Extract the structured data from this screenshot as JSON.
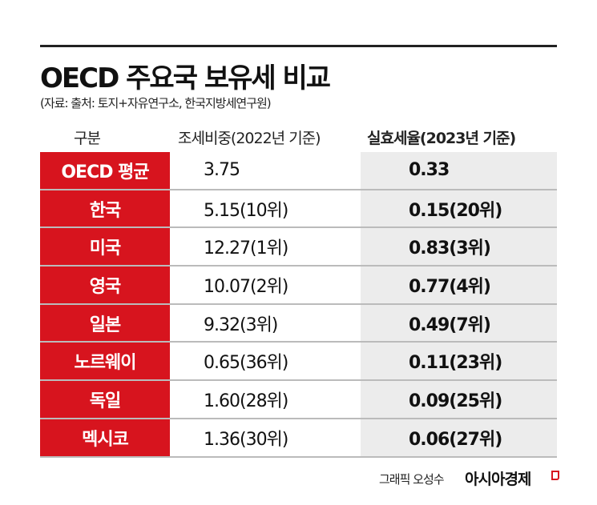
{
  "title": "OECD 주요국 보유세 비교",
  "source": "(자료: 출처: 토지+자유연구소, 한국지방세연구원)",
  "headers": {
    "category": "구분",
    "col1": "조세비중(2022년 기준)",
    "col2": "실효세율(2023년 기준)"
  },
  "rows": [
    {
      "country": "OECD 평균",
      "tax_share": "3.75",
      "effective_rate": "0.33"
    },
    {
      "country": "한국",
      "tax_share": "5.15(10위)",
      "effective_rate": "0.15(20위)"
    },
    {
      "country": "미국",
      "tax_share": "12.27(1위)",
      "effective_rate": "0.83(3위)"
    },
    {
      "country": "영국",
      "tax_share": "10.07(2위)",
      "effective_rate": "0.77(4위)"
    },
    {
      "country": "일본",
      "tax_share": "9.32(3위)",
      "effective_rate": "0.49(7위)"
    },
    {
      "country": "노르웨이",
      "tax_share": "0.65(36위)",
      "effective_rate": "0.11(23위)"
    },
    {
      "country": "독일",
      "tax_share": "1.60(28위)",
      "effective_rate": "0.09(25위)"
    },
    {
      "country": "멕시코",
      "tax_share": "1.36(30위)",
      "effective_rate": "0.06(27위)"
    }
  ],
  "credit": "그래픽 오성수",
  "brand": "아시아경제",
  "colors": {
    "accent": "#d7141e",
    "shade": "#ececec"
  }
}
